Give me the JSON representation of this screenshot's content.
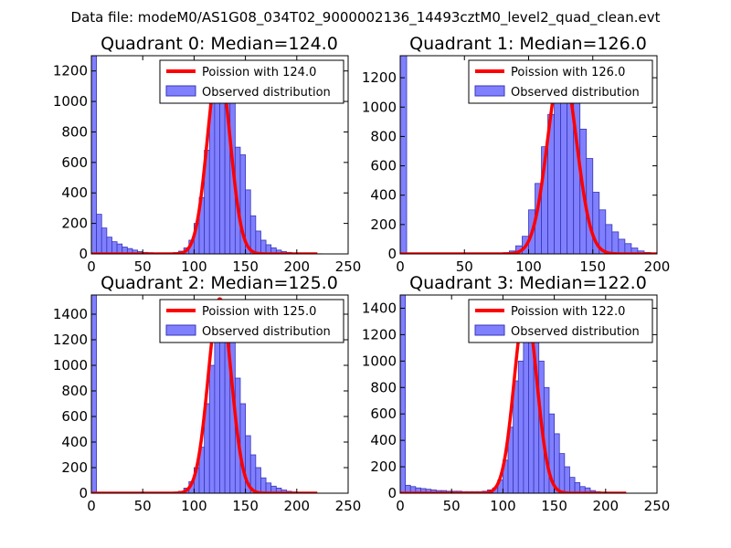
{
  "figure": {
    "suptitle": "Data file: modeM0/AS1G08_034T02_9000002136_14493cztM0_level2_quad_clean.evt"
  },
  "colors": {
    "bar_fill": "#8080ff",
    "bar_edge": "#3636b8",
    "fit_line": "#ff0000"
  },
  "chart_data": [
    {
      "type": "bar",
      "title": "Quadrant 0: Median=124.0",
      "median": 124.0,
      "bin_width": 5,
      "xlim": [
        0,
        250
      ],
      "ylim": [
        0,
        1300
      ],
      "xticks": [
        0,
        50,
        100,
        150,
        200,
        250
      ],
      "yticks": [
        0,
        200,
        400,
        600,
        800,
        1000,
        1200
      ],
      "legend": {
        "location": "upper right",
        "entries": [
          "Poission with 124.0",
          "Observed distribution"
        ]
      },
      "bins": [
        0,
        5,
        10,
        15,
        20,
        25,
        30,
        35,
        40,
        45,
        50,
        55,
        60,
        65,
        70,
        75,
        80,
        85,
        90,
        95,
        100,
        105,
        110,
        115,
        120,
        125,
        130,
        135,
        140,
        145,
        150,
        155,
        160,
        165,
        170,
        175,
        180,
        185,
        190,
        195,
        200,
        205,
        210,
        215,
        220
      ],
      "counts": [
        1300,
        260,
        170,
        110,
        80,
        65,
        45,
        35,
        25,
        15,
        10,
        8,
        6,
        5,
        5,
        6,
        8,
        18,
        40,
        90,
        200,
        370,
        680,
        1000,
        1200,
        1150,
        1200,
        1000,
        700,
        650,
        420,
        250,
        150,
        90,
        60,
        40,
        25,
        15,
        10,
        6,
        4,
        3,
        2,
        1,
        1
      ],
      "fit_peak": 1240
    },
    {
      "type": "bar",
      "title": "Quadrant 1: Median=126.0",
      "median": 126.0,
      "bin_width": 5,
      "xlim": [
        0,
        200
      ],
      "ylim": [
        0,
        1350
      ],
      "xticks": [
        0,
        50,
        100,
        150,
        200
      ],
      "yticks": [
        0,
        200,
        400,
        600,
        800,
        1000,
        1200
      ],
      "legend": {
        "location": "upper right",
        "entries": [
          "Poission with 126.0",
          "Observed distribution"
        ]
      },
      "bins": [
        0,
        5,
        10,
        15,
        20,
        25,
        30,
        35,
        40,
        45,
        50,
        55,
        60,
        65,
        70,
        75,
        80,
        85,
        90,
        95,
        100,
        105,
        110,
        115,
        120,
        125,
        130,
        135,
        140,
        145,
        150,
        155,
        160,
        165,
        170,
        175,
        180,
        185,
        190,
        195
      ],
      "counts": [
        1350,
        5,
        4,
        4,
        3,
        3,
        3,
        3,
        3,
        3,
        3,
        3,
        3,
        4,
        4,
        5,
        8,
        20,
        55,
        120,
        300,
        480,
        730,
        950,
        1150,
        1300,
        1200,
        1050,
        850,
        650,
        420,
        300,
        200,
        150,
        100,
        70,
        40,
        20,
        10,
        5
      ],
      "fit_peak": 1280
    },
    {
      "type": "bar",
      "title": "Quadrant 2: Median=125.0",
      "median": 125.0,
      "bin_width": 5,
      "xlim": [
        0,
        250
      ],
      "ylim": [
        0,
        1550
      ],
      "xticks": [
        0,
        50,
        100,
        150,
        200,
        250
      ],
      "yticks": [
        0,
        200,
        400,
        600,
        800,
        1000,
        1200,
        1400
      ],
      "legend": {
        "location": "upper right",
        "entries": [
          "Poission with 125.0",
          "Observed distribution"
        ]
      },
      "bins": [
        0,
        5,
        10,
        15,
        20,
        25,
        30,
        35,
        40,
        45,
        50,
        55,
        60,
        65,
        70,
        75,
        80,
        85,
        90,
        95,
        100,
        105,
        110,
        115,
        120,
        125,
        130,
        135,
        140,
        145,
        150,
        155,
        160,
        165,
        170,
        175,
        180,
        185,
        190,
        195,
        200,
        205
      ],
      "counts": [
        1550,
        5,
        4,
        3,
        3,
        3,
        3,
        3,
        3,
        3,
        3,
        3,
        3,
        3,
        3,
        5,
        8,
        15,
        40,
        90,
        200,
        360,
        700,
        1000,
        1300,
        1500,
        1450,
        1200,
        900,
        700,
        450,
        300,
        200,
        120,
        80,
        55,
        40,
        25,
        15,
        10,
        6,
        4
      ],
      "fit_peak": 1520
    },
    {
      "type": "bar",
      "title": "Quadrant 3: Median=122.0",
      "median": 122.0,
      "bin_width": 5,
      "xlim": [
        0,
        250
      ],
      "ylim": [
        0,
        1500
      ],
      "xticks": [
        0,
        50,
        100,
        150,
        200,
        250
      ],
      "yticks": [
        0,
        200,
        400,
        600,
        800,
        1000,
        1200,
        1400
      ],
      "legend": {
        "location": "upper right",
        "entries": [
          "Poission with 122.0",
          "Observed distribution"
        ]
      },
      "bins": [
        0,
        5,
        10,
        15,
        20,
        25,
        30,
        35,
        40,
        45,
        50,
        55,
        60,
        65,
        70,
        75,
        80,
        85,
        90,
        95,
        100,
        105,
        110,
        115,
        120,
        125,
        130,
        135,
        140,
        145,
        150,
        155,
        160,
        165,
        170,
        175,
        180,
        185,
        190,
        195,
        200,
        205,
        210,
        215
      ],
      "counts": [
        1500,
        60,
        50,
        40,
        35,
        30,
        25,
        20,
        20,
        15,
        15,
        15,
        12,
        12,
        12,
        12,
        15,
        25,
        40,
        100,
        250,
        500,
        850,
        1000,
        1400,
        1400,
        1200,
        1000,
        800,
        600,
        450,
        300,
        200,
        120,
        80,
        50,
        40,
        20,
        12,
        8,
        5,
        4,
        3,
        2
      ],
      "fit_peak": 1410
    }
  ]
}
